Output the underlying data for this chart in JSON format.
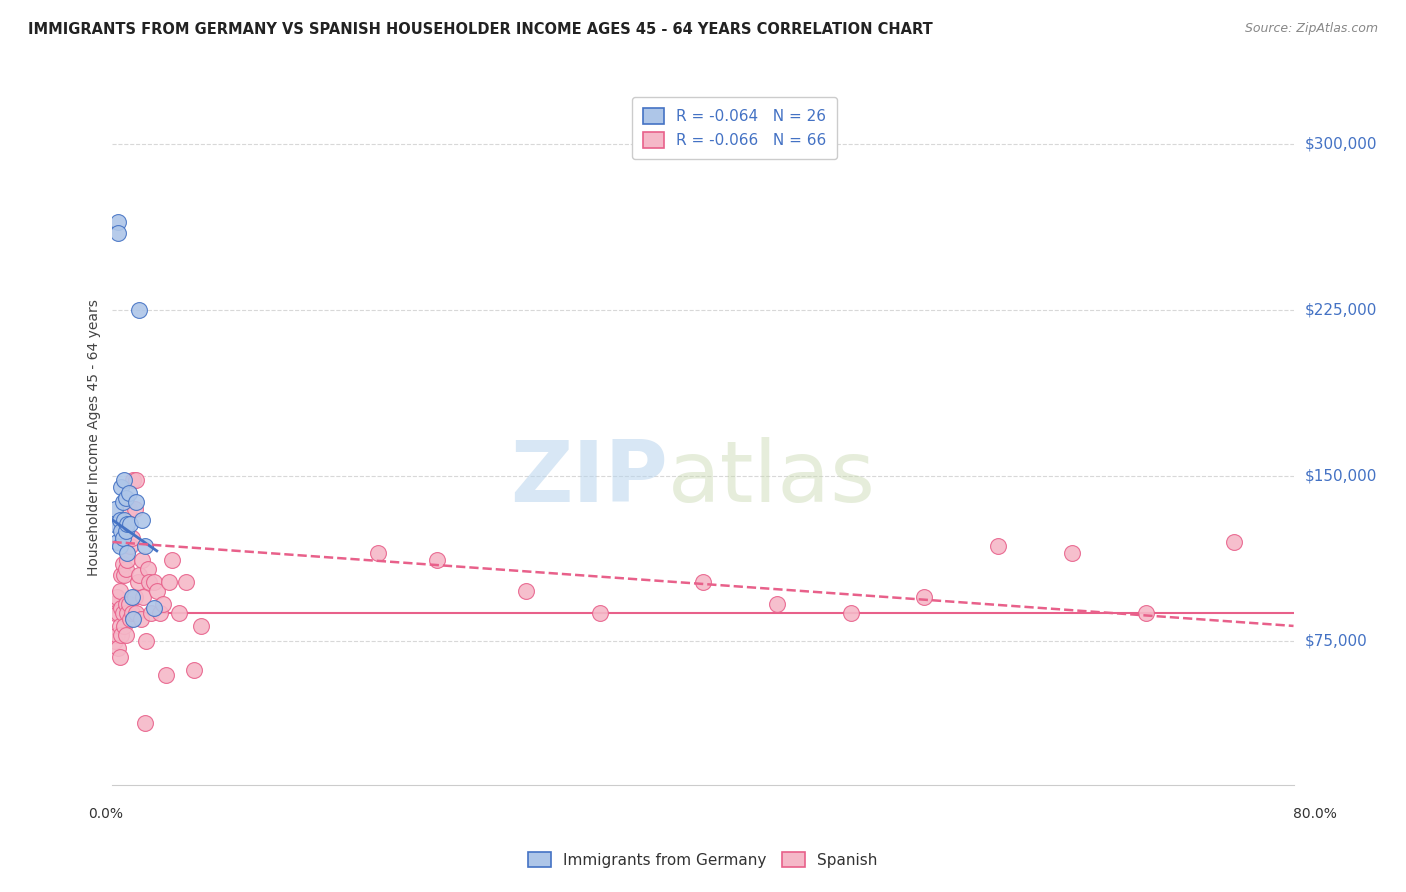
{
  "title": "IMMIGRANTS FROM GERMANY VS SPANISH HOUSEHOLDER INCOME AGES 45 - 64 YEARS CORRELATION CHART",
  "source": "Source: ZipAtlas.com",
  "ylabel": "Householder Income Ages 45 - 64 years",
  "ytick_labels": [
    "$75,000",
    "$150,000",
    "$225,000",
    "$300,000"
  ],
  "ytick_values": [
    75000,
    150000,
    225000,
    300000
  ],
  "ymin": 10000,
  "ymax": 325000,
  "xmin": 0.0,
  "xmax": 0.8,
  "legend_germany": "R = -0.064   N = 26",
  "legend_spanish": "R = -0.066   N = 66",
  "germany_color": "#aec6e8",
  "spanish_color": "#f5b8c8",
  "germany_line_color": "#4472c4",
  "spanish_line_color": "#e8608a",
  "germany_scatter_x": [
    0.001,
    0.002,
    0.003,
    0.004,
    0.004,
    0.005,
    0.005,
    0.006,
    0.006,
    0.007,
    0.007,
    0.008,
    0.008,
    0.009,
    0.009,
    0.01,
    0.01,
    0.011,
    0.012,
    0.013,
    0.014,
    0.016,
    0.018,
    0.02,
    0.022,
    0.028
  ],
  "germany_scatter_y": [
    128000,
    135000,
    120000,
    265000,
    260000,
    130000,
    118000,
    145000,
    125000,
    138000,
    122000,
    148000,
    130000,
    125000,
    140000,
    128000,
    115000,
    142000,
    128000,
    95000,
    85000,
    138000,
    225000,
    130000,
    118000,
    90000
  ],
  "spanish_scatter_x": [
    0.001,
    0.002,
    0.002,
    0.003,
    0.003,
    0.004,
    0.004,
    0.005,
    0.005,
    0.005,
    0.006,
    0.006,
    0.006,
    0.007,
    0.007,
    0.008,
    0.008,
    0.009,
    0.009,
    0.009,
    0.01,
    0.01,
    0.011,
    0.011,
    0.012,
    0.012,
    0.013,
    0.013,
    0.014,
    0.015,
    0.015,
    0.016,
    0.016,
    0.017,
    0.018,
    0.019,
    0.02,
    0.021,
    0.022,
    0.023,
    0.024,
    0.025,
    0.026,
    0.028,
    0.03,
    0.032,
    0.034,
    0.036,
    0.038,
    0.04,
    0.045,
    0.05,
    0.055,
    0.06,
    0.18,
    0.22,
    0.28,
    0.33,
    0.4,
    0.45,
    0.5,
    0.55,
    0.6,
    0.65,
    0.7,
    0.76
  ],
  "spanish_scatter_y": [
    92000,
    88000,
    75000,
    95000,
    78000,
    88000,
    72000,
    98000,
    82000,
    68000,
    105000,
    90000,
    78000,
    110000,
    88000,
    105000,
    82000,
    108000,
    92000,
    78000,
    112000,
    88000,
    135000,
    92000,
    118000,
    85000,
    122000,
    88000,
    148000,
    135000,
    95000,
    148000,
    88000,
    102000,
    105000,
    85000,
    112000,
    95000,
    38000,
    75000,
    108000,
    102000,
    88000,
    102000,
    98000,
    88000,
    92000,
    60000,
    102000,
    112000,
    88000,
    102000,
    62000,
    82000,
    115000,
    112000,
    98000,
    88000,
    102000,
    92000,
    88000,
    95000,
    118000,
    115000,
    88000,
    120000
  ],
  "background_color": "#ffffff",
  "grid_color": "#d8d8d8"
}
